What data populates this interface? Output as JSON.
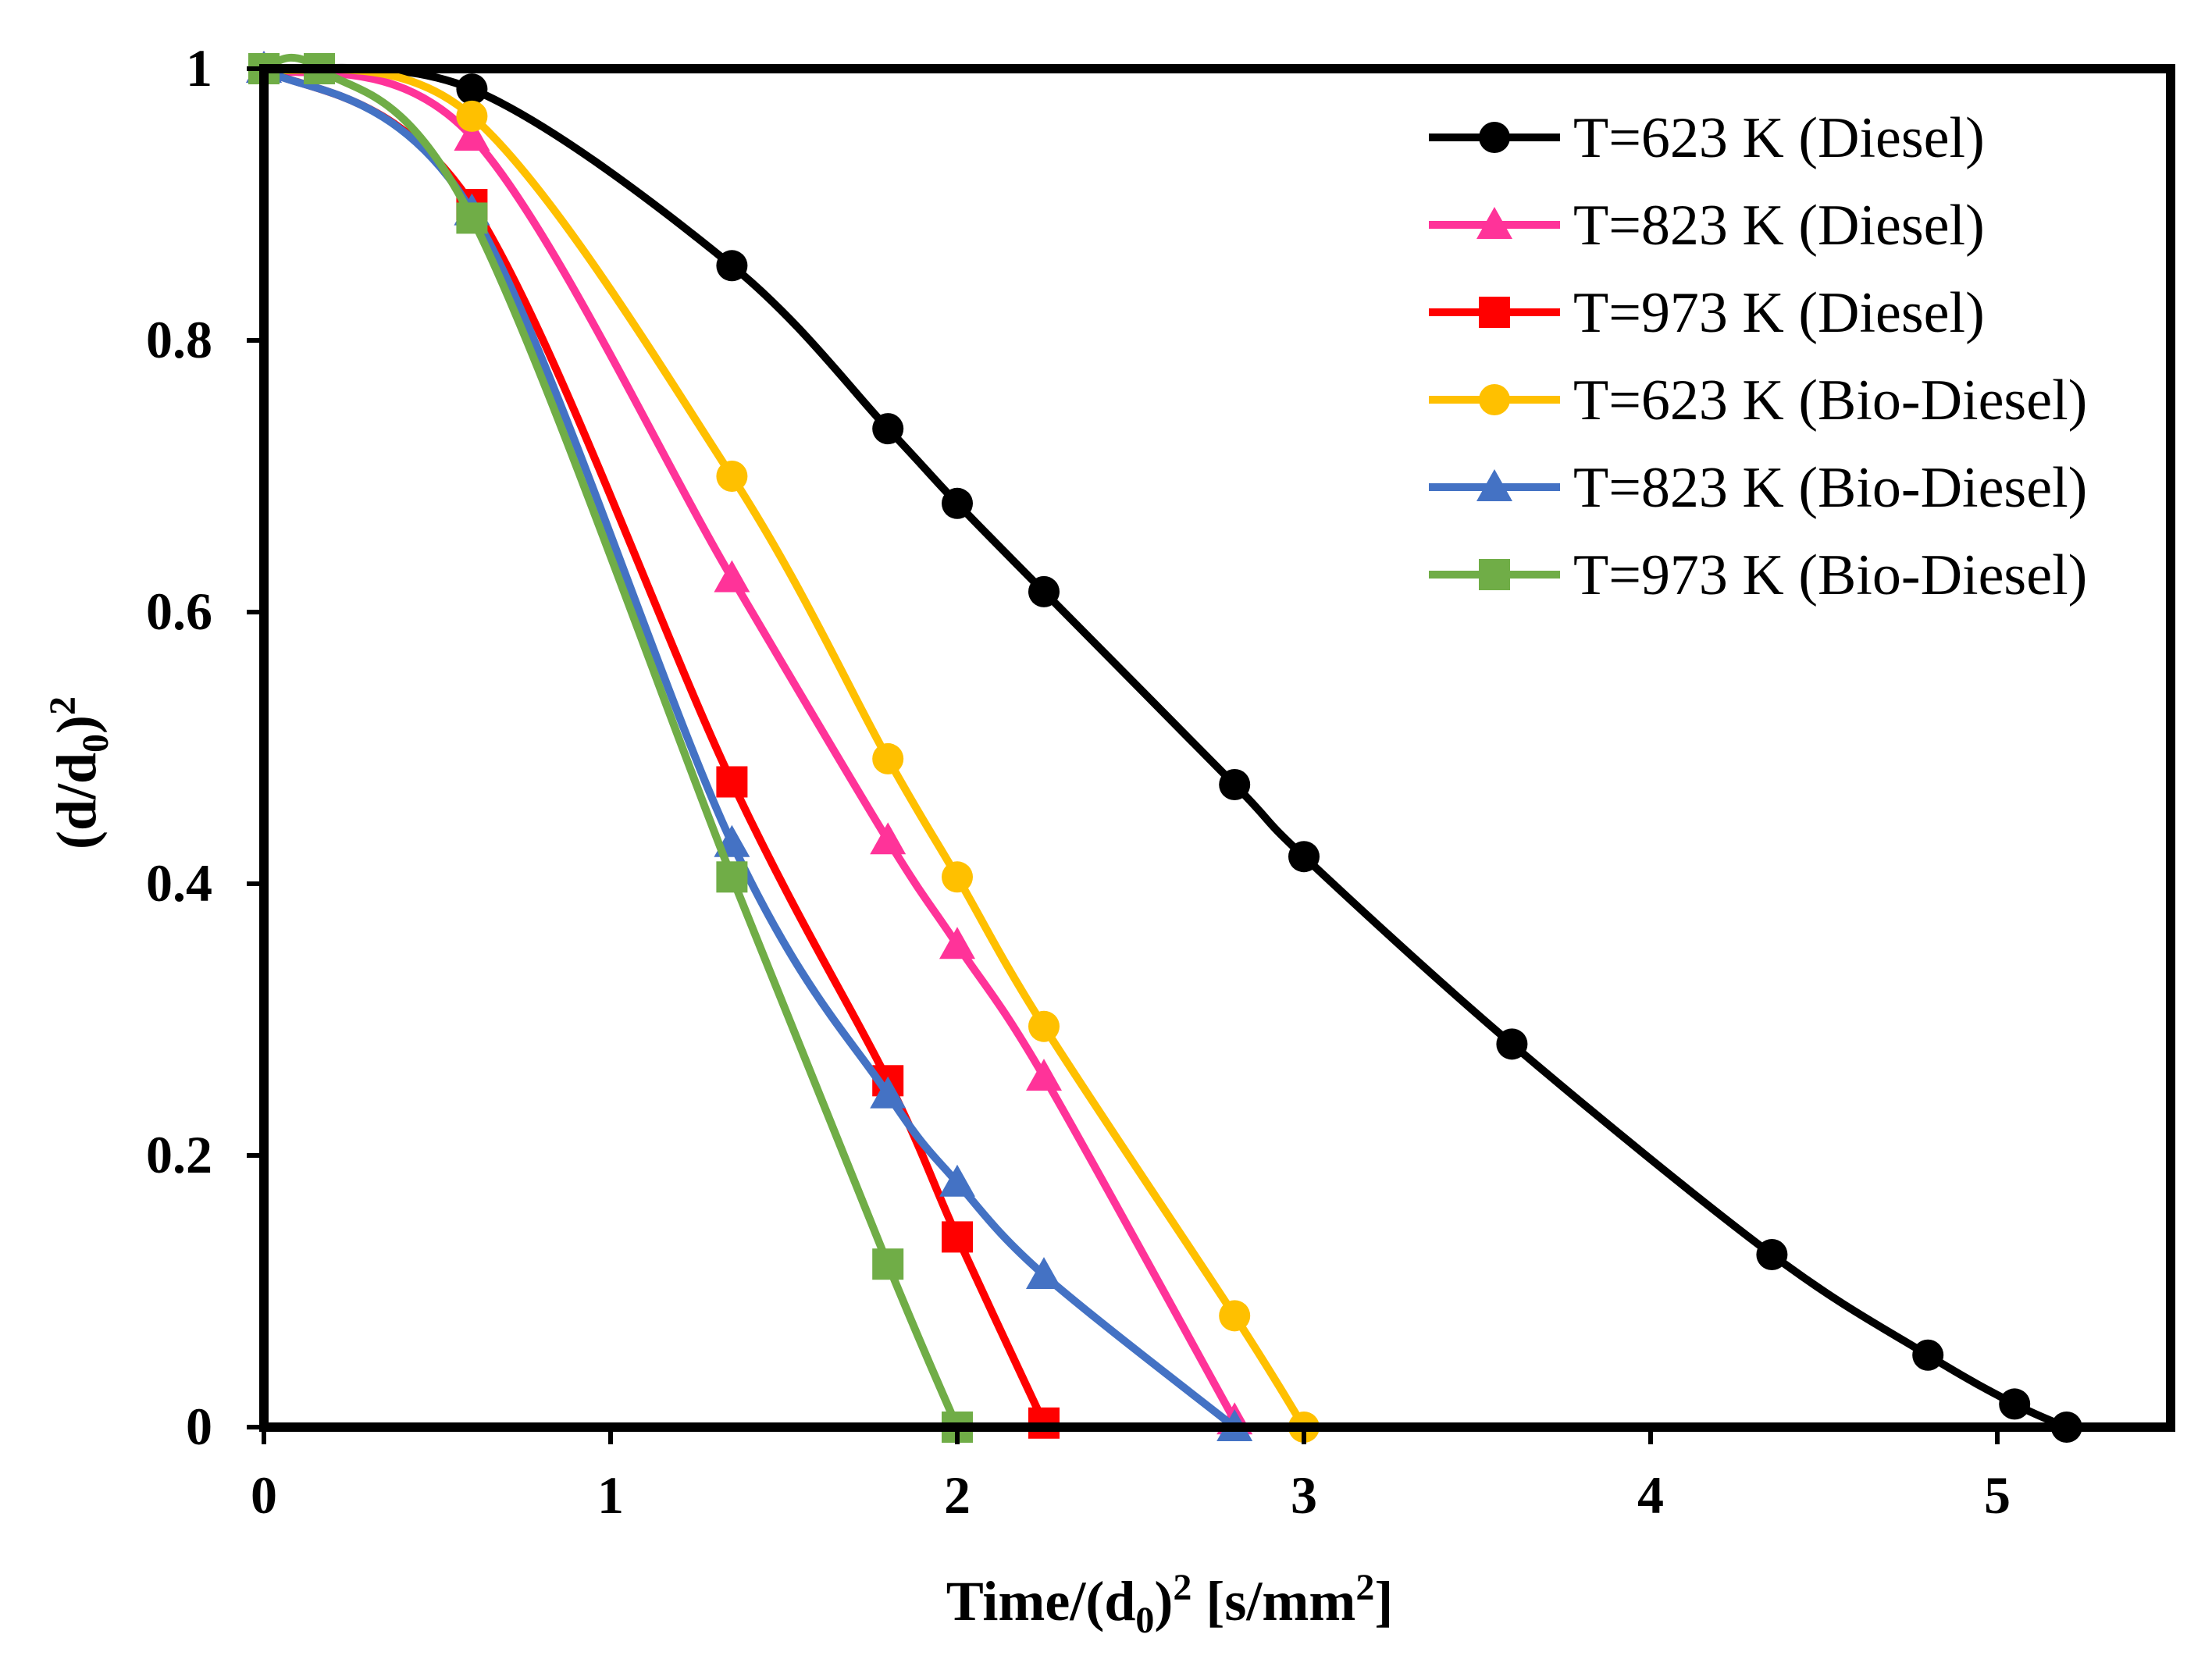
{
  "chart_data": {
    "type": "line",
    "title": "",
    "xlabel": "Time/(d0)2 [s/mm2]",
    "xlabel_parts": {
      "main": "Time/(d",
      "sub": "0",
      "close": ")",
      "sup": "2",
      "units_open": " [s/mm",
      "units_sup": "2",
      "units_close": "]"
    },
    "ylabel": "(d/d0)2",
    "ylabel_parts": {
      "open": "(d/d",
      "sub": "0",
      "close": ")",
      "sup": "2"
    },
    "xlim": [
      0,
      5.5
    ],
    "ylim": [
      0,
      1
    ],
    "xticks": [
      0,
      1,
      2,
      3,
      4,
      5
    ],
    "yticks": [
      0,
      0.2,
      0.4,
      0.6,
      0.8,
      1
    ],
    "xtick_labels": [
      "0",
      "1",
      "2",
      "3",
      "4",
      "5"
    ],
    "ytick_labels": [
      "0",
      "0.2",
      "0.4",
      "0.6",
      "0.8",
      "1"
    ],
    "grid": false,
    "legend_position": "top-right",
    "series": [
      {
        "name": "T=623 K (Diesel)",
        "color": "#000000",
        "marker": "circle",
        "points": [
          [
            0,
            1
          ],
          [
            0.6,
            0.985
          ],
          [
            1.35,
            0.855
          ],
          [
            1.8,
            0.735
          ],
          [
            2.0,
            0.68
          ],
          [
            2.25,
            0.615
          ],
          [
            2.8,
            0.473
          ],
          [
            3.0,
            0.42
          ],
          [
            3.6,
            0.282
          ],
          [
            4.35,
            0.127
          ],
          [
            4.8,
            0.053
          ],
          [
            5.05,
            0.017
          ],
          [
            5.2,
            0
          ]
        ]
      },
      {
        "name": "T=823 K (Diesel)",
        "color": "#ff3399",
        "marker": "triangle",
        "points": [
          [
            0,
            1
          ],
          [
            0.6,
            0.95
          ],
          [
            1.35,
            0.625
          ],
          [
            1.8,
            0.432
          ],
          [
            2.0,
            0.355
          ],
          [
            2.25,
            0.258
          ],
          [
            2.8,
            0.005
          ]
        ]
      },
      {
        "name": "T=973 K (Diesel)",
        "color": "#ff0000",
        "marker": "square",
        "points": [
          [
            0,
            1
          ],
          [
            0.6,
            0.9
          ],
          [
            1.35,
            0.475
          ],
          [
            1.8,
            0.255
          ],
          [
            2.0,
            0.14
          ],
          [
            2.25,
            0.003
          ]
        ]
      },
      {
        "name": "T=623 K (Bio-Diesel)",
        "color": "#ffc000",
        "marker": "circle",
        "points": [
          [
            0,
            1
          ],
          [
            0.6,
            0.965
          ],
          [
            1.35,
            0.7
          ],
          [
            1.8,
            0.492
          ],
          [
            2.0,
            0.405
          ],
          [
            2.25,
            0.295
          ],
          [
            2.8,
            0.082
          ],
          [
            3.0,
            0
          ]
        ]
      },
      {
        "name": "T=823 K (Bio-Diesel)",
        "color": "#4472c4",
        "marker": "triangle",
        "points": [
          [
            0,
            1
          ],
          [
            0.6,
            0.895
          ],
          [
            1.35,
            0.43
          ],
          [
            1.8,
            0.245
          ],
          [
            2.0,
            0.18
          ],
          [
            2.25,
            0.112
          ],
          [
            2.8,
            0
          ]
        ]
      },
      {
        "name": "T=973 K (Bio-Diesel)",
        "color": "#70ad47",
        "marker": "square",
        "points": [
          [
            0,
            1
          ],
          [
            0.16,
            1
          ],
          [
            0.6,
            0.89
          ],
          [
            1.35,
            0.405
          ],
          [
            1.8,
            0.12
          ],
          [
            2.0,
            0
          ]
        ]
      }
    ]
  }
}
